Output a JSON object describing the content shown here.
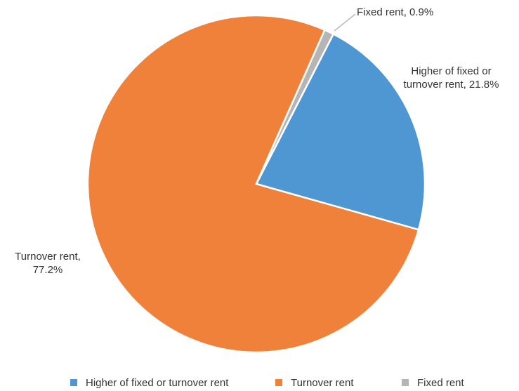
{
  "chart_data": {
    "type": "pie",
    "categories": [
      "Higher of fixed or turnover rent",
      "Turnover rent",
      "Fixed rent"
    ],
    "values": [
      21.8,
      77.2,
      0.9
    ],
    "value_labels": [
      "Higher of fixed or turnover rent, 21.8%",
      "Turnover rent, 77.2%",
      "Fixed rent, 0.9%"
    ],
    "colors": [
      "#4f97d3",
      "#f0813a",
      "#b5b5b5"
    ],
    "legend": "bottom"
  }
}
